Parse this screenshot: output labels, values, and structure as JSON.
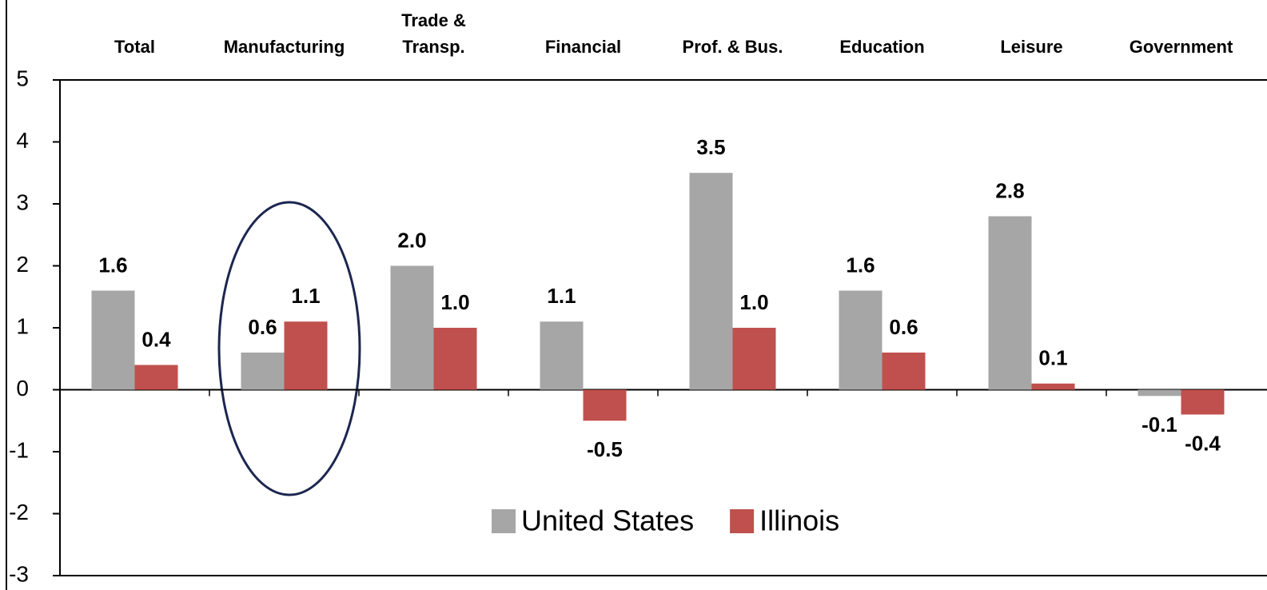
{
  "chart_data": {
    "type": "bar",
    "categories": [
      "Total",
      "Manufacturing",
      "Trade &\nTransp.",
      "Financial",
      "Prof. & Bus.",
      "Education",
      "Leisure",
      "Government"
    ],
    "series": [
      {
        "name": "United States",
        "color": "#a6a6a6",
        "values": [
          1.6,
          0.6,
          2.0,
          1.1,
          3.5,
          1.6,
          2.8,
          -0.1
        ],
        "value_labels": [
          "1.6",
          "0.6",
          "2.0",
          "1.1",
          "3.5",
          "1.6",
          "2.8",
          "-0.1"
        ]
      },
      {
        "name": "Illinois",
        "color": "#c0504d",
        "values": [
          0.4,
          1.1,
          1.0,
          -0.5,
          1.0,
          0.6,
          0.1,
          -0.4
        ],
        "value_labels": [
          "0.4",
          "1.1",
          "1.0",
          "-0.5",
          "1.0",
          "0.6",
          "0.1",
          "-0.4"
        ]
      }
    ],
    "ylim": [
      -3,
      5
    ],
    "yticks": [
      -3,
      -2,
      -1,
      0,
      1,
      2,
      3,
      4,
      5
    ],
    "grid": false,
    "legend": "bottom"
  }
}
